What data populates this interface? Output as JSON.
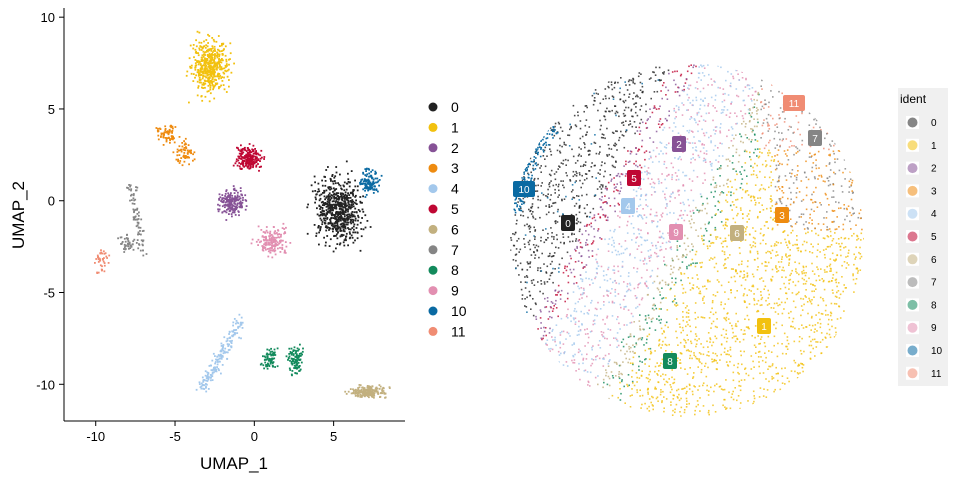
{
  "clusters": [
    {
      "id": "0",
      "color": "#222222"
    },
    {
      "id": "1",
      "color": "#f2c10f"
    },
    {
      "id": "2",
      "color": "#865296"
    },
    {
      "id": "3",
      "color": "#ee8b10"
    },
    {
      "id": "4",
      "color": "#a3c8ec"
    },
    {
      "id": "5",
      "color": "#bf0733"
    },
    {
      "id": "6",
      "color": "#c2b07f"
    },
    {
      "id": "7",
      "color": "#858585"
    },
    {
      "id": "8",
      "color": "#138a5c"
    },
    {
      "id": "9",
      "color": "#e28fb1"
    },
    {
      "id": "10",
      "color": "#0a6aa2"
    },
    {
      "id": "11",
      "color": "#f08c73"
    }
  ],
  "chart_data": [
    {
      "type": "scatter",
      "title": "",
      "xlabel": "UMAP_1",
      "ylabel": "UMAP_2",
      "xlim": [
        -12,
        9.5
      ],
      "ylim": [
        -12,
        10.5
      ],
      "xticks": [
        -10,
        -5,
        0,
        5
      ],
      "yticks": [
        -10,
        -5,
        0,
        5,
        10
      ],
      "grid": false,
      "legend": "right",
      "legend_entries": [
        "0",
        "1",
        "2",
        "3",
        "4",
        "5",
        "6",
        "7",
        "8",
        "9",
        "10",
        "11"
      ],
      "clusters": [
        {
          "name": "0",
          "centroid": [
            5.3,
            -0.5
          ]
        },
        {
          "name": "1",
          "centroid": [
            -2.8,
            7.3
          ]
        },
        {
          "name": "2",
          "centroid": [
            -1.3,
            0.0
          ]
        },
        {
          "name": "3",
          "centroid": [
            -5.0,
            3.0
          ]
        },
        {
          "name": "4",
          "centroid": [
            -2.0,
            -8.5
          ]
        },
        {
          "name": "5",
          "centroid": [
            -0.4,
            2.0
          ]
        },
        {
          "name": "6",
          "centroid": [
            7.2,
            -10.5
          ]
        },
        {
          "name": "7",
          "centroid": [
            -7.8,
            -1.5
          ]
        },
        {
          "name": "8",
          "centroid": [
            1.8,
            -8.5
          ]
        },
        {
          "name": "9",
          "centroid": [
            1.2,
            -2.0
          ]
        },
        {
          "name": "10",
          "centroid": [
            7.3,
            1.0
          ]
        },
        {
          "name": "11",
          "centroid": [
            -9.8,
            -3.5
          ]
        }
      ]
    },
    {
      "type": "scatter",
      "title": "",
      "xlabel": "",
      "ylabel": "",
      "legend_title": "ident",
      "legend": "right",
      "legend_entries": [
        "0",
        "1",
        "2",
        "3",
        "4",
        "5",
        "6",
        "7",
        "8",
        "9",
        "10",
        "11"
      ],
      "labels": [
        "0",
        "1",
        "2",
        "3",
        "4",
        "5",
        "6",
        "7",
        "8",
        "9",
        "10",
        "11"
      ]
    }
  ]
}
